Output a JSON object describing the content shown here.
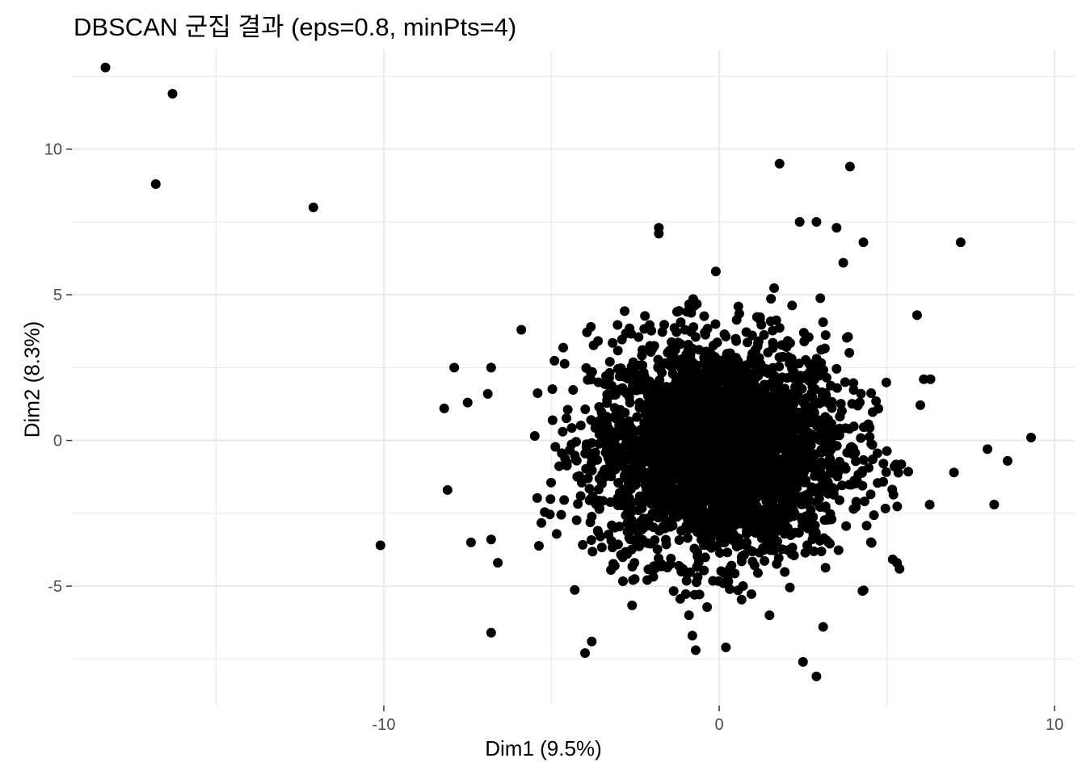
{
  "chart_data": {
    "type": "scatter",
    "title": "DBSCAN 군집 결과 (eps=0.8, minPts=4)",
    "xlabel": "Dim1 (9.5%)",
    "ylabel": "Dim2 (8.3%)",
    "xlim": [
      -19.3,
      10.6
    ],
    "ylim": [
      -9.1,
      13.4
    ],
    "x_ticks": [
      -10,
      0,
      10
    ],
    "y_ticks": [
      -5,
      0,
      5,
      10
    ],
    "grid": true,
    "legend": "none",
    "point_color": "#000000",
    "outlier_points": [
      [
        -18.3,
        12.8
      ],
      [
        -16.3,
        11.9
      ],
      [
        -16.8,
        8.8
      ],
      [
        -12.1,
        8.0
      ],
      [
        -10.1,
        -3.6
      ],
      [
        -8.2,
        1.1
      ],
      [
        -8.1,
        -1.7
      ],
      [
        -7.9,
        2.5
      ],
      [
        -7.5,
        1.3
      ],
      [
        -7.4,
        -3.5
      ],
      [
        -6.9,
        1.6
      ],
      [
        -6.8,
        2.5
      ],
      [
        -6.8,
        -3.4
      ],
      [
        -6.8,
        -6.6
      ],
      [
        -6.6,
        -4.2
      ],
      [
        -5.9,
        3.8
      ],
      [
        -4.0,
        -7.3
      ],
      [
        -3.8,
        -6.9
      ],
      [
        1.8,
        9.5
      ],
      [
        3.9,
        9.4
      ],
      [
        -1.8,
        7.3
      ],
      [
        -1.8,
        7.1
      ],
      [
        7.2,
        6.8
      ],
      [
        2.4,
        7.5
      ],
      [
        2.9,
        7.5
      ],
      [
        3.5,
        7.3
      ],
      [
        4.3,
        6.8
      ],
      [
        3.7,
        6.1
      ],
      [
        9.3,
        0.1
      ],
      [
        8.0,
        -0.3
      ],
      [
        8.6,
        -0.7
      ],
      [
        8.2,
        -2.2
      ],
      [
        7.0,
        -1.1
      ],
      [
        6.3,
        2.1
      ],
      [
        6.1,
        2.1
      ],
      [
        5.9,
        4.3
      ],
      [
        5.3,
        -4.2
      ],
      [
        2.5,
        -7.6
      ],
      [
        2.9,
        -8.1
      ],
      [
        3.1,
        -6.4
      ],
      [
        0.2,
        -7.1
      ],
      [
        -0.7,
        -7.2
      ],
      [
        -0.8,
        -6.7
      ],
      [
        -0.9,
        -6.0
      ],
      [
        1.5,
        -6.0
      ],
      [
        -0.1,
        5.8
      ],
      [
        -0.2,
        -1.0
      ],
      [
        0.1,
        -0.5
      ]
    ],
    "dense_cluster": {
      "center": [
        0.0,
        -0.3
      ],
      "spread_x": 1.9,
      "spread_y": 1.9,
      "approx_point_count": 3000,
      "x_range": [
        -5.5,
        6.5
      ],
      "y_range": [
        -5.8,
        5.8
      ]
    }
  }
}
